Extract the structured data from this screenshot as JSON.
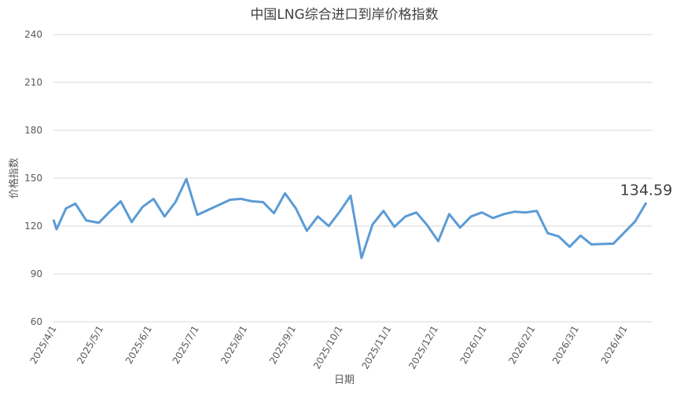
{
  "chart_data": {
    "type": "line",
    "title": "中国LNG综合进口到岸价格指数",
    "x_label": "日期",
    "y_label": "价格指数",
    "x": [
      "2025/4/1",
      "2025/4/3",
      "2025/4/9",
      "2025/4/15",
      "2025/4/22",
      "2025/4/30",
      "2025/5/7",
      "2025/5/14",
      "2025/5/21",
      "2025/5/28",
      "2025/6/4",
      "2025/6/11",
      "2025/6/18",
      "2025/6/25",
      "2025/7/2",
      "2025/7/23",
      "2025/7/30",
      "2025/8/6",
      "2025/8/13",
      "2025/8/20",
      "2025/8/27",
      "2025/9/3",
      "2025/9/10",
      "2025/9/17",
      "2025/9/24",
      "2025/10/1",
      "2025/10/8",
      "2025/10/15",
      "2025/10/22",
      "2025/10/29",
      "2025/11/5",
      "2025/11/12",
      "2025/11/19",
      "2025/11/26",
      "2025/12/3",
      "2025/12/10",
      "2025/12/17",
      "2025/12/24",
      "2025/12/31",
      "2026/1/7",
      "2026/1/14",
      "2026/1/21",
      "2026/1/28",
      "2026/2/4",
      "2026/2/11",
      "2026/2/18",
      "2026/2/25",
      "2026/3/4",
      "2026/3/11",
      "2026/3/25",
      "2026/4/8",
      "2026/4/15"
    ],
    "series": [
      {
        "name": "价格指数",
        "color": "#5b9bd5",
        "values": [
          124,
          118,
          131,
          134,
          123.5,
          122,
          129,
          135.5,
          122.5,
          132,
          137,
          126,
          135,
          149.5,
          127,
          136.5,
          137,
          135.5,
          135,
          128,
          140.5,
          131,
          117,
          126,
          120,
          129,
          139,
          100,
          121,
          129.5,
          119.5,
          126,
          128.5,
          120.5,
          110.5,
          127.5,
          119,
          126,
          128.5,
          125,
          127.5,
          129,
          128.5,
          129.5,
          115.5,
          113.5,
          107,
          114,
          108.5,
          109,
          123,
          134.59
        ]
      }
    ],
    "xlim": [
      "2025/4/1",
      "2026/4/19"
    ],
    "xticks": [
      "2025/4/1",
      "2025/5/1",
      "2025/6/1",
      "2025/7/1",
      "2025/8/1",
      "2025/9/1",
      "2025/10/1",
      "2025/11/1",
      "2025/12/1",
      "2026/1/1",
      "2026/2/1",
      "2026/3/1",
      "2026/4/1"
    ],
    "ylim": [
      60,
      240
    ],
    "yticks": [
      60,
      90,
      120,
      150,
      180,
      210,
      240
    ],
    "grid": true
  }
}
